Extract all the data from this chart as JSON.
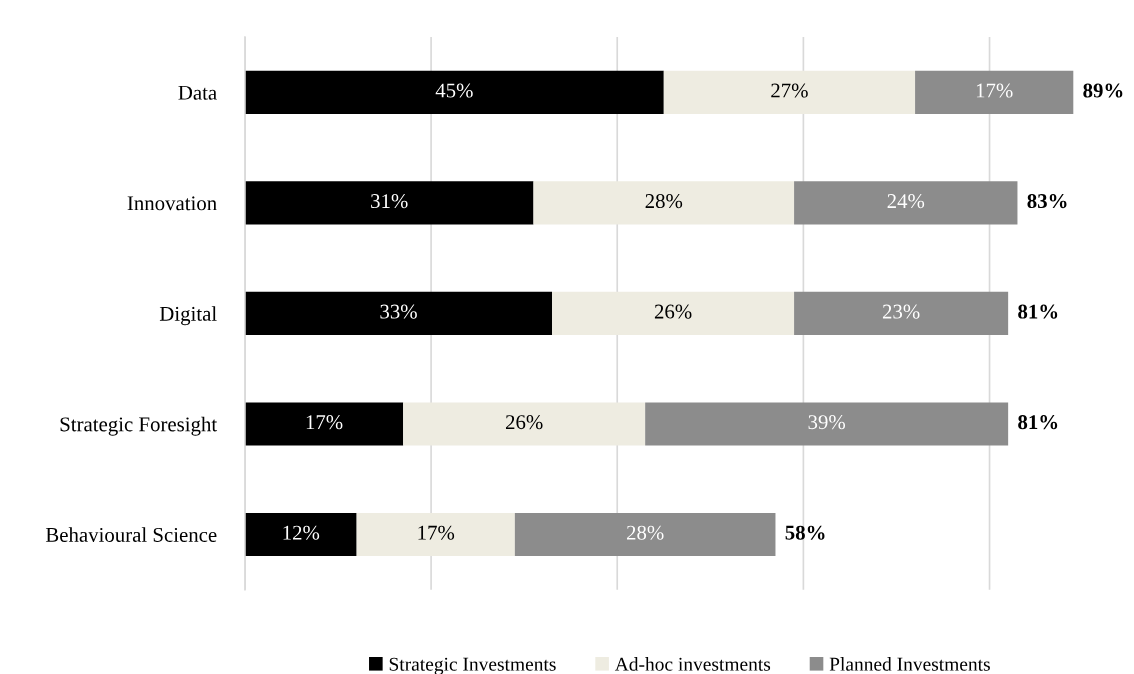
{
  "chart_data": {
    "type": "bar",
    "orientation": "horizontal",
    "stacked": true,
    "categories": [
      "Data",
      "Innovation",
      "Digital",
      "Strategic Foresight",
      "Behavioural Science"
    ],
    "series": [
      {
        "name": "Strategic Investments",
        "color": "#000000",
        "values": [
          45,
          31,
          33,
          17,
          12
        ],
        "value_labels": [
          "45%",
          "31%",
          "33%",
          "17%",
          "12%"
        ]
      },
      {
        "name": "Ad-hoc investments",
        "color": "#eeece1",
        "values": [
          27,
          28,
          26,
          26,
          17
        ],
        "value_labels": [
          "27%",
          "28%",
          "26%",
          "26%",
          "17%"
        ]
      },
      {
        "name": "Planned Investments",
        "color": "#8c8c8c",
        "values": [
          17,
          24,
          23,
          39,
          28
        ],
        "value_labels": [
          "17%",
          "24%",
          "23%",
          "39%",
          "28%"
        ]
      }
    ],
    "totals": [
      "89%",
      "83%",
      "81%",
      "81%",
      "58%"
    ],
    "grid": "x",
    "legend": "bottom",
    "tick_labels": "y"
  }
}
